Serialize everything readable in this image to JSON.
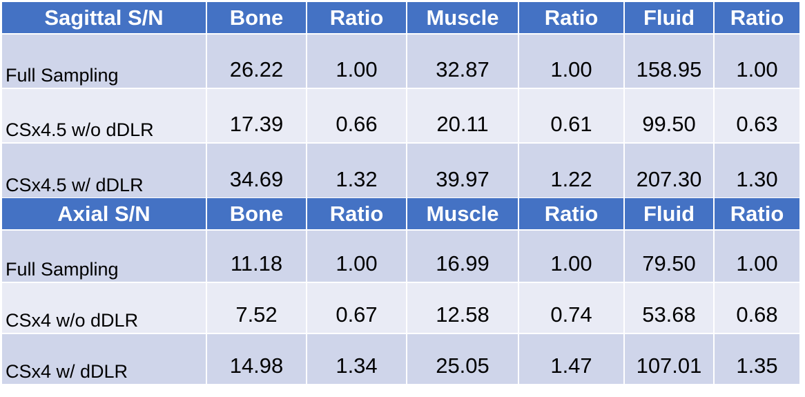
{
  "tables": [
    {
      "header": [
        "Sagittal S/N",
        "Bone",
        "Ratio",
        "Muscle",
        "Ratio",
        "Fluid",
        "Ratio"
      ],
      "rows": [
        [
          "Full Sampling",
          "26.22",
          "1.00",
          "32.87",
          "1.00",
          "158.95",
          "1.00"
        ],
        [
          "CSx4.5 w/o dDLR",
          "17.39",
          "0.66",
          "20.11",
          "0.61",
          "99.50",
          "0.63"
        ],
        [
          "CSx4.5 w/ dDLR",
          "34.69",
          "1.32",
          "39.97",
          "1.22",
          "207.30",
          "1.30"
        ]
      ]
    },
    {
      "header": [
        "Axial S/N",
        "Bone",
        "Ratio",
        "Muscle",
        "Ratio",
        "Fluid",
        "Ratio"
      ],
      "rows": [
        [
          "Full Sampling",
          "11.18",
          "1.00",
          "16.99",
          "1.00",
          "79.50",
          "1.00"
        ],
        [
          "CSx4 w/o dDLR",
          "7.52",
          "0.67",
          "12.58",
          "0.74",
          "53.68",
          "0.68"
        ],
        [
          "CSx4 w/ dDLR",
          "14.98",
          "1.34",
          "25.05",
          "1.47",
          "107.01",
          "1.35"
        ]
      ]
    }
  ]
}
